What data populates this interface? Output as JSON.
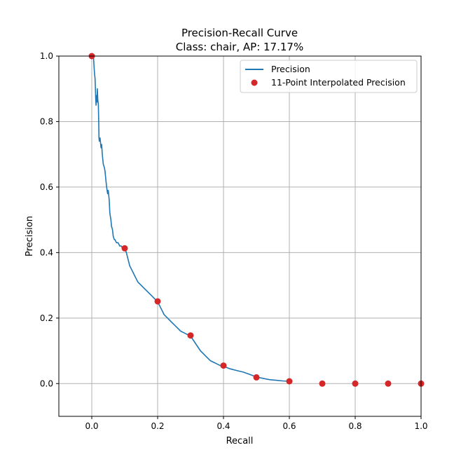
{
  "chart_data": {
    "type": "line",
    "title": "Precision-Recall Curve",
    "subtitle": "Class: chair, AP: 17.17%",
    "xlabel": "Recall",
    "ylabel": "Precision",
    "xlim": [
      -0.1,
      1.0
    ],
    "ylim": [
      -0.1,
      1.0
    ],
    "x_ticks": [
      0.0,
      0.2,
      0.4,
      0.6,
      0.8,
      1.0
    ],
    "x_tick_labels": [
      "0.0",
      "0.2",
      "0.4",
      "0.6",
      "0.8",
      "1.0"
    ],
    "y_ticks": [
      0.0,
      0.2,
      0.4,
      0.6,
      0.8,
      1.0
    ],
    "y_tick_labels": [
      "0.0",
      "0.2",
      "0.4",
      "0.6",
      "0.8",
      "1.0"
    ],
    "grid": true,
    "legend_position": "top-right",
    "series": [
      {
        "name": "Precision",
        "kind": "line",
        "color": "#1f77b4",
        "x": [
          0.0,
          0.005,
          0.008,
          0.01,
          0.011,
          0.012,
          0.013,
          0.015,
          0.016,
          0.017,
          0.018,
          0.02,
          0.021,
          0.022,
          0.023,
          0.025,
          0.028,
          0.03,
          0.032,
          0.035,
          0.038,
          0.04,
          0.043,
          0.045,
          0.048,
          0.05,
          0.053,
          0.055,
          0.058,
          0.06,
          0.063,
          0.065,
          0.068,
          0.07,
          0.075,
          0.08,
          0.085,
          0.09,
          0.095,
          0.1,
          0.105,
          0.11,
          0.115,
          0.12,
          0.125,
          0.13,
          0.135,
          0.14,
          0.15,
          0.16,
          0.17,
          0.18,
          0.19,
          0.2,
          0.21,
          0.22,
          0.23,
          0.24,
          0.25,
          0.26,
          0.27,
          0.28,
          0.29,
          0.3,
          0.31,
          0.32,
          0.33,
          0.34,
          0.35,
          0.36,
          0.37,
          0.38,
          0.39,
          0.4,
          0.42,
          0.44,
          0.46,
          0.48,
          0.5,
          0.52,
          0.54,
          0.56,
          0.58,
          0.6
        ],
        "y": [
          1.0,
          1.0,
          0.95,
          0.93,
          0.9,
          0.87,
          0.85,
          0.88,
          0.86,
          0.9,
          0.87,
          0.85,
          0.8,
          0.75,
          0.74,
          0.75,
          0.72,
          0.73,
          0.7,
          0.67,
          0.66,
          0.65,
          0.62,
          0.6,
          0.58,
          0.59,
          0.56,
          0.52,
          0.5,
          0.48,
          0.47,
          0.45,
          0.44,
          0.44,
          0.43,
          0.43,
          0.42,
          0.42,
          0.41,
          0.413,
          0.4,
          0.38,
          0.36,
          0.35,
          0.34,
          0.33,
          0.32,
          0.31,
          0.3,
          0.29,
          0.28,
          0.27,
          0.26,
          0.25,
          0.23,
          0.21,
          0.2,
          0.19,
          0.18,
          0.17,
          0.16,
          0.155,
          0.15,
          0.145,
          0.13,
          0.115,
          0.1,
          0.09,
          0.08,
          0.07,
          0.065,
          0.06,
          0.055,
          0.053,
          0.045,
          0.04,
          0.035,
          0.028,
          0.02,
          0.016,
          0.012,
          0.01,
          0.008,
          0.007
        ]
      },
      {
        "name": "11-Point Interpolated Precision",
        "kind": "scatter",
        "color": "#d62728",
        "x": [
          0.0,
          0.1,
          0.2,
          0.3,
          0.4,
          0.5,
          0.6,
          0.7,
          0.8,
          0.9,
          1.0
        ],
        "y": [
          1.0,
          0.413,
          0.251,
          0.147,
          0.055,
          0.019,
          0.007,
          0.0,
          0.0,
          0.0,
          0.0
        ]
      }
    ]
  }
}
